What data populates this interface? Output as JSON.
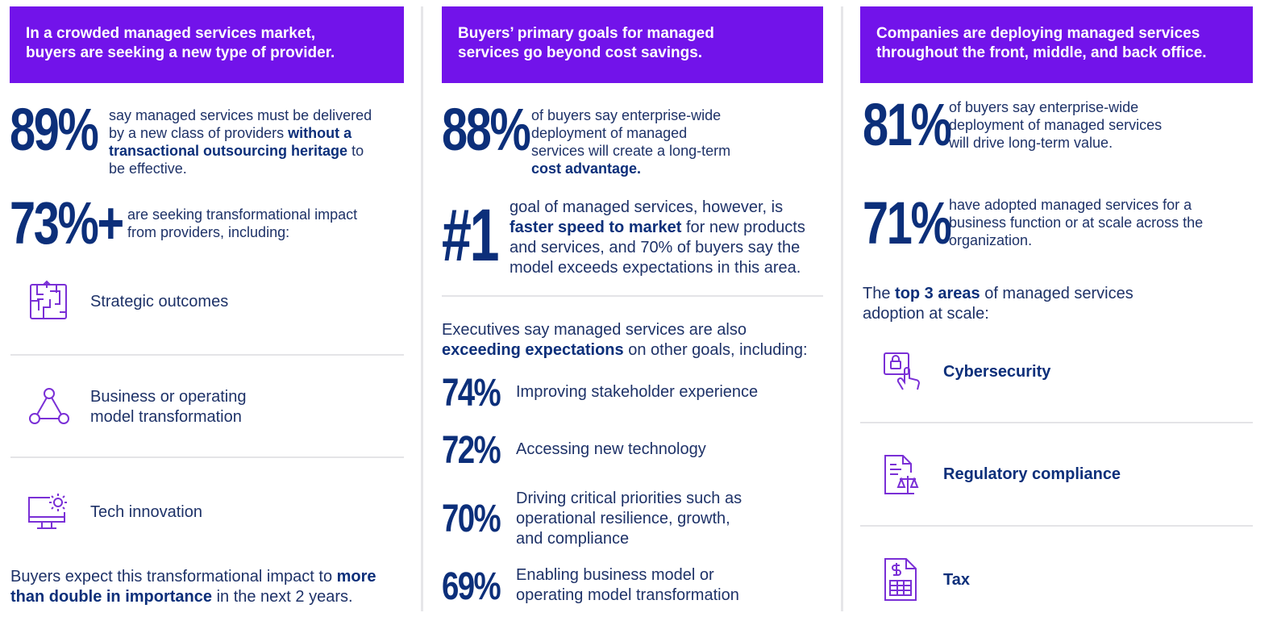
{
  "col1": {
    "banner_line1": "In a crowded managed services market,",
    "banner_line2": "buyers are seeking a new type of provider.",
    "stat1_value": "89%",
    "stat1_text_pre": "say managed services must be delivered by a new class of providers ",
    "stat1_text_bold": "without a transactional outsourcing heritage",
    "stat1_text_post": " to be effective.",
    "stat2_value": "73%+",
    "stat2_text": "are seeking transformational impact from providers, including:",
    "items": [
      {
        "label": "Strategic outcomes",
        "icon": "maze-icon"
      },
      {
        "label": "Business or operating model transformation",
        "icon": "triangle-nodes-icon"
      },
      {
        "label": "Tech innovation",
        "icon": "monitor-gear-icon"
      }
    ],
    "footer_pre": "Buyers expect this transformational impact to ",
    "footer_bold": "more than double in importance",
    "footer_post": " in the next 2 years."
  },
  "col2": {
    "banner_line1": "Buyers’ primary goals for managed",
    "banner_line2": "services go beyond cost savings.",
    "stat1_value": "88%",
    "stat1_text_pre": "of buyers say enterprise-wide deployment of managed services will create a long-term ",
    "stat1_text_bold": "cost advantage.",
    "stat2_value": "#1",
    "stat2_text_pre": "goal of managed services, however, is ",
    "stat2_text_bold": "faster speed to market",
    "stat2_text_post": " for new products and services, and 70% of buyers say the model exceeds expectations in this area.",
    "intro_pre": "Executives say managed services are also ",
    "intro_bold": "exceeding expectations",
    "intro_post": " on other goals, including:",
    "goals": [
      {
        "value": "74%",
        "label": "Improving stakeholder experience"
      },
      {
        "value": "72%",
        "label": "Accessing new technology"
      },
      {
        "value": "70%",
        "label": "Driving critical priorities such as operational resilience, growth, and compliance"
      },
      {
        "value": "69%",
        "label": "Enabling business model or operating model transformation"
      }
    ]
  },
  "col3": {
    "banner_line1": "Companies are deploying managed services",
    "banner_line2": "throughout the front, middle, and back office.",
    "stat1_value": "81%",
    "stat1_text": "of buyers say enterprise-wide deployment of managed services will drive long-term value.",
    "stat2_value": "71%",
    "stat2_text": "have adopted managed services for a business function or at scale across the organization.",
    "intro_pre": "The ",
    "intro_bold": "top 3 areas",
    "intro_post": " of managed services adoption at scale:",
    "areas": [
      {
        "label": "Cybersecurity",
        "icon": "lock-touch-icon"
      },
      {
        "label": "Regulatory compliance",
        "icon": "document-scales-icon"
      },
      {
        "label": "Tax",
        "icon": "dollar-document-icon"
      }
    ]
  },
  "colors": {
    "banner": "#7213ea",
    "navy": "#0c2f7a",
    "icon": "#7a2fd6"
  }
}
